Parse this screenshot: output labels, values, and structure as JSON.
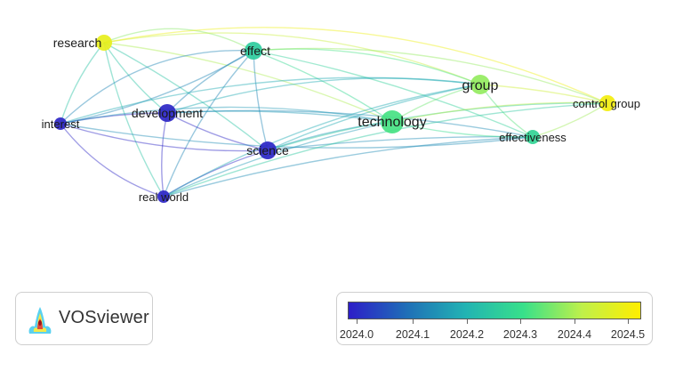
{
  "nodes": [
    {
      "id": "research",
      "label": "research",
      "year": 2024.48
    },
    {
      "id": "effect",
      "label": "effect",
      "year": 2024.26
    },
    {
      "id": "development",
      "label": "development",
      "year": 2024.0
    },
    {
      "id": "interest",
      "label": "interest",
      "year": 2024.0
    },
    {
      "id": "science",
      "label": "science",
      "year": 2024.0
    },
    {
      "id": "realworld",
      "label": "real world",
      "year": 2024.0
    },
    {
      "id": "technology",
      "label": "technology",
      "year": 2024.32
    },
    {
      "id": "group",
      "label": "group",
      "year": 2024.38
    },
    {
      "id": "effectiveness",
      "label": "effectiveness",
      "year": 2024.28
    },
    {
      "id": "controlgroup",
      "label": "control group",
      "year": 2024.5
    }
  ],
  "logo": {
    "text": "VOSviewer"
  },
  "legend": {
    "ticks": [
      "2024.0",
      "2024.1",
      "2024.2",
      "2024.3",
      "2024.4",
      "2024.5"
    ],
    "min": 2023.99,
    "max": 2024.52,
    "gradient": [
      "#2d1ec8",
      "#1f6fb7",
      "#22b3b3",
      "#38e08a",
      "#bff04a",
      "#ffee00"
    ]
  }
}
